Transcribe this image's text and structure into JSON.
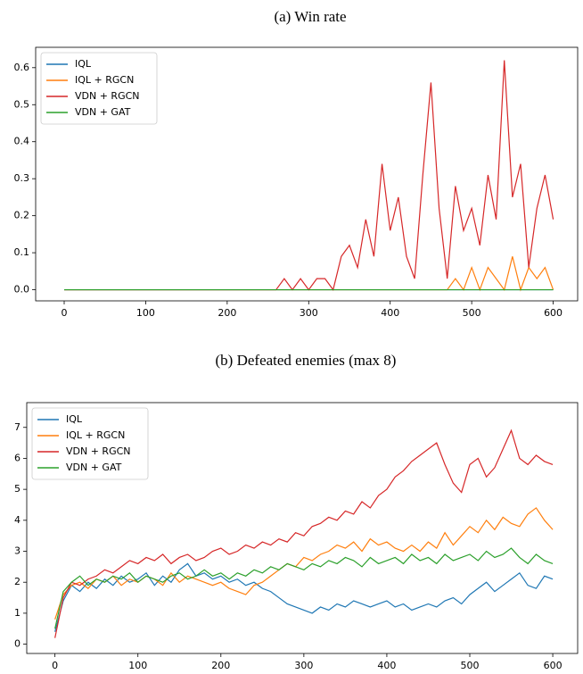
{
  "chart_data": [
    {
      "type": "line",
      "title": "(a) Win rate",
      "x": [
        0,
        10,
        20,
        30,
        40,
        50,
        60,
        70,
        80,
        90,
        100,
        110,
        120,
        130,
        140,
        150,
        160,
        170,
        180,
        190,
        200,
        210,
        220,
        230,
        240,
        250,
        260,
        270,
        280,
        290,
        300,
        310,
        320,
        330,
        340,
        350,
        360,
        370,
        380,
        390,
        400,
        410,
        420,
        430,
        440,
        450,
        460,
        470,
        480,
        490,
        500,
        510,
        520,
        530,
        540,
        550,
        560,
        570,
        580,
        590,
        600
      ],
      "xlim": [
        -35,
        630
      ],
      "xticks": [
        0,
        100,
        200,
        300,
        400,
        500,
        600
      ],
      "ylim": [
        -0.03,
        0.655
      ],
      "yticks": [
        {
          "value": 0,
          "label": "0.0"
        },
        0.1,
        0.2,
        0.3,
        0.4,
        0.5,
        0.6
      ],
      "legend": "upper left",
      "series": [
        {
          "name": "IQL",
          "color": "#1f77b4",
          "values": [
            0,
            0,
            0,
            0,
            0,
            0,
            0,
            0,
            0,
            0,
            0,
            0,
            0,
            0,
            0,
            0,
            0,
            0,
            0,
            0,
            0,
            0,
            0,
            0,
            0,
            0,
            0,
            0,
            0,
            0,
            0,
            0,
            0,
            0,
            0,
            0,
            0,
            0,
            0,
            0,
            0,
            0,
            0,
            0,
            0,
            0,
            0,
            0,
            0,
            0,
            0,
            0,
            0,
            0,
            0,
            0,
            0,
            0,
            0,
            0,
            0
          ]
        },
        {
          "name": "IQL + RGCN",
          "color": "#ff7f0e",
          "values": [
            0,
            0,
            0,
            0,
            0,
            0,
            0,
            0,
            0,
            0,
            0,
            0,
            0,
            0,
            0,
            0,
            0,
            0,
            0,
            0,
            0,
            0,
            0,
            0,
            0,
            0,
            0,
            0,
            0,
            0,
            0,
            0,
            0,
            0,
            0,
            0,
            0,
            0,
            0,
            0,
            0,
            0,
            0,
            0,
            0,
            0,
            0,
            0,
            0.03,
            0,
            0.06,
            0,
            0.06,
            0.03,
            0,
            0.09,
            0,
            0.06,
            0.03,
            0.06,
            0
          ]
        },
        {
          "name": "VDN + RGCN",
          "color": "#d62728",
          "values": [
            0,
            0,
            0,
            0,
            0,
            0,
            0,
            0,
            0,
            0,
            0,
            0,
            0,
            0,
            0,
            0,
            0,
            0,
            0,
            0,
            0,
            0,
            0,
            0,
            0,
            0,
            0,
            0.03,
            0,
            0.03,
            0,
            0.03,
            0.03,
            0,
            0.09,
            0.12,
            0.06,
            0.19,
            0.09,
            0.34,
            0.16,
            0.25,
            0.09,
            0.03,
            0.31,
            0.56,
            0.22,
            0.03,
            0.28,
            0.16,
            0.22,
            0.12,
            0.31,
            0.19,
            0.62,
            0.25,
            0.34,
            0.06,
            0.22,
            0.31,
            0.19
          ]
        },
        {
          "name": "VDN + GAT",
          "color": "#2ca02c",
          "values": [
            0,
            0,
            0,
            0,
            0,
            0,
            0,
            0,
            0,
            0,
            0,
            0,
            0,
            0,
            0,
            0,
            0,
            0,
            0,
            0,
            0,
            0,
            0,
            0,
            0,
            0,
            0,
            0,
            0,
            0,
            0,
            0,
            0,
            0,
            0,
            0,
            0,
            0,
            0,
            0,
            0,
            0,
            0,
            0,
            0,
            0,
            0,
            0,
            0,
            0,
            0,
            0,
            0,
            0,
            0,
            0,
            0,
            0,
            0,
            0,
            0
          ]
        }
      ]
    },
    {
      "type": "line",
      "title": "(b) Defeated enemies (max 8)",
      "x": [
        0,
        10,
        20,
        30,
        40,
        50,
        60,
        70,
        80,
        90,
        100,
        110,
        120,
        130,
        140,
        150,
        160,
        170,
        180,
        190,
        200,
        210,
        220,
        230,
        240,
        250,
        260,
        270,
        280,
        290,
        300,
        310,
        320,
        330,
        340,
        350,
        360,
        370,
        380,
        390,
        400,
        410,
        420,
        430,
        440,
        450,
        460,
        470,
        480,
        490,
        500,
        510,
        520,
        530,
        540,
        550,
        560,
        570,
        580,
        590,
        600
      ],
      "xlim": [
        -34,
        630
      ],
      "xticks": [
        0,
        100,
        200,
        300,
        400,
        500,
        600
      ],
      "ylim": [
        -0.3,
        7.8
      ],
      "yticks": [
        0,
        1,
        2,
        3,
        4,
        5,
        6,
        7
      ],
      "legend": "upper left",
      "series": [
        {
          "name": "IQL",
          "color": "#1f77b4",
          "values": [
            0.4,
            1.4,
            1.9,
            1.7,
            2.0,
            1.8,
            2.1,
            1.9,
            2.2,
            2.0,
            2.1,
            2.3,
            1.9,
            2.2,
            2.0,
            2.4,
            2.6,
            2.2,
            2.3,
            2.1,
            2.2,
            2.0,
            2.1,
            1.9,
            2.0,
            1.8,
            1.7,
            1.5,
            1.3,
            1.2,
            1.1,
            1.0,
            1.2,
            1.1,
            1.3,
            1.2,
            1.4,
            1.3,
            1.2,
            1.3,
            1.4,
            1.2,
            1.3,
            1.1,
            1.2,
            1.3,
            1.2,
            1.4,
            1.5,
            1.3,
            1.6,
            1.8,
            2.0,
            1.7,
            1.9,
            2.1,
            2.3,
            1.9,
            1.8,
            2.2,
            2.1
          ]
        },
        {
          "name": "IQL + RGCN",
          "color": "#ff7f0e",
          "values": [
            0.8,
            1.6,
            1.9,
            2.0,
            1.8,
            2.1,
            2.0,
            2.2,
            1.9,
            2.1,
            2.0,
            2.2,
            2.1,
            1.9,
            2.3,
            2.0,
            2.2,
            2.1,
            2.0,
            1.9,
            2.0,
            1.8,
            1.7,
            1.6,
            1.9,
            2.0,
            2.2,
            2.4,
            2.6,
            2.5,
            2.8,
            2.7,
            2.9,
            3.0,
            3.2,
            3.1,
            3.3,
            3.0,
            3.4,
            3.2,
            3.3,
            3.1,
            3.0,
            3.2,
            3.0,
            3.3,
            3.1,
            3.6,
            3.2,
            3.5,
            3.8,
            3.6,
            4.0,
            3.7,
            4.1,
            3.9,
            3.8,
            4.2,
            4.4,
            4.0,
            3.7
          ]
        },
        {
          "name": "VDN + RGCN",
          "color": "#d62728",
          "values": [
            0.2,
            1.5,
            2.0,
            1.9,
            2.1,
            2.2,
            2.4,
            2.3,
            2.5,
            2.7,
            2.6,
            2.8,
            2.7,
            2.9,
            2.6,
            2.8,
            2.9,
            2.7,
            2.8,
            3.0,
            3.1,
            2.9,
            3.0,
            3.2,
            3.1,
            3.3,
            3.2,
            3.4,
            3.3,
            3.6,
            3.5,
            3.8,
            3.9,
            4.1,
            4.0,
            4.3,
            4.2,
            4.6,
            4.4,
            4.8,
            5.0,
            5.4,
            5.6,
            5.9,
            6.1,
            6.3,
            6.5,
            5.8,
            5.2,
            4.9,
            5.8,
            6.0,
            5.4,
            5.7,
            6.3,
            6.9,
            6.0,
            5.8,
            6.1,
            5.9,
            5.8
          ]
        },
        {
          "name": "VDN + GAT",
          "color": "#2ca02c",
          "values": [
            0.5,
            1.7,
            2.0,
            2.2,
            1.9,
            2.1,
            2.0,
            2.2,
            2.1,
            2.3,
            2.0,
            2.2,
            2.1,
            2.0,
            2.2,
            2.3,
            2.1,
            2.2,
            2.4,
            2.2,
            2.3,
            2.1,
            2.3,
            2.2,
            2.4,
            2.3,
            2.5,
            2.4,
            2.6,
            2.5,
            2.4,
            2.6,
            2.5,
            2.7,
            2.6,
            2.8,
            2.7,
            2.5,
            2.8,
            2.6,
            2.7,
            2.8,
            2.6,
            2.9,
            2.7,
            2.8,
            2.6,
            2.9,
            2.7,
            2.8,
            2.9,
            2.7,
            3.0,
            2.8,
            2.9,
            3.1,
            2.8,
            2.6,
            2.9,
            2.7,
            2.6
          ]
        }
      ]
    }
  ]
}
